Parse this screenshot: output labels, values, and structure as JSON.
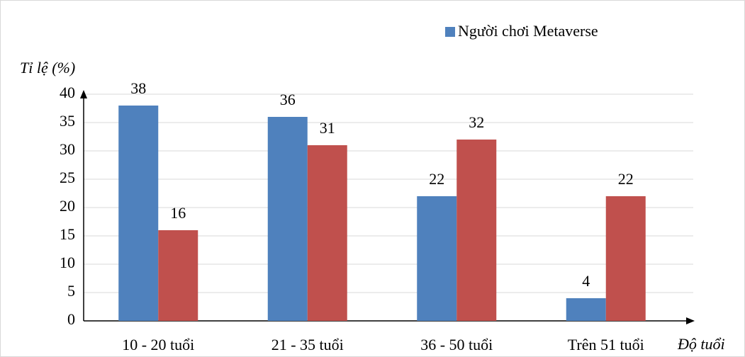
{
  "chart_data": {
    "type": "bar",
    "y_label": "Tỉ lệ (%)",
    "x_label": "Độ tuổi",
    "categories": [
      "10 - 20 tuổi",
      "21 - 35 tuổi",
      "36 -  50 tuổi",
      "Trên 51 tuổi"
    ],
    "series": [
      {
        "name": "Người chơi Metaverse",
        "color": "#4f81bd",
        "values": [
          38,
          36,
          22,
          4
        ]
      },
      {
        "color": "#c0504d",
        "values": [
          16,
          31,
          32,
          22
        ]
      }
    ],
    "ylim": [
      0,
      40
    ],
    "yticks": [
      0,
      5,
      10,
      15,
      20,
      25,
      30,
      35,
      40
    ],
    "grid": true,
    "legend": "top-right"
  }
}
